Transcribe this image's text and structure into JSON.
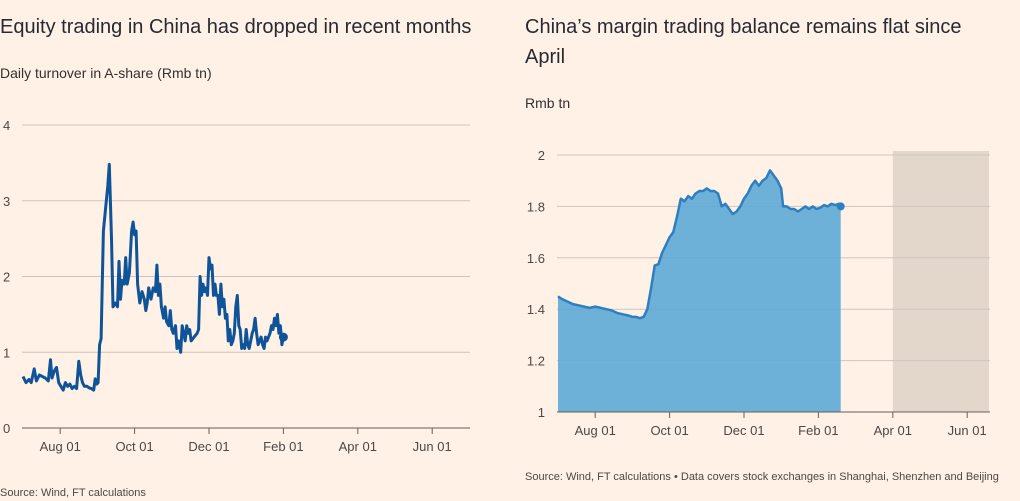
{
  "charts": {
    "left": {
      "title": "Equity trading in China has dropped in recent months",
      "subtitle": "Daily turnover in A-share (Rmb tn)",
      "source": "Source: Wind, FT calculations"
    },
    "right": {
      "title": "China’s margin trading balance remains flat since April",
      "subtitle": "Rmb tn",
      "source": "Source: Wind, FT calculations • Data covers stock exchanges in Shanghai, Shenzhen and Beijing"
    }
  },
  "colors": {
    "background": "#FFF1E5",
    "line": "#0F5499",
    "area_fill": "#5AA7D6",
    "area_stroke": "#2E7FBF",
    "shade": "#E3D7CC",
    "grid": "#CEC6BD"
  },
  "chart_data": [
    {
      "type": "line",
      "title": "Equity trading in China has dropped in recent months",
      "ylabel": "Daily turnover in A-share (Rmb tn)",
      "ylim": [
        0,
        4
      ],
      "yticks": [
        "0",
        "1",
        "2",
        "3",
        "4"
      ],
      "xticks": [
        "Aug 01",
        "Oct 01",
        "Dec 01",
        "Feb 01",
        "Apr 01",
        "Jun 01"
      ],
      "grid": true,
      "x_unit": "months since Jul 01",
      "series": [
        {
          "values": [
            [
              0.0,
              0.68
            ],
            [
              0.08,
              0.6
            ],
            [
              0.16,
              0.64
            ],
            [
              0.22,
              0.6
            ],
            [
              0.3,
              0.78
            ],
            [
              0.36,
              0.62
            ],
            [
              0.44,
              0.7
            ],
            [
              0.52,
              0.68
            ],
            [
              0.6,
              0.66
            ],
            [
              0.68,
              0.62
            ],
            [
              0.74,
              0.9
            ],
            [
              0.78,
              0.66
            ],
            [
              0.84,
              0.75
            ],
            [
              0.9,
              0.8
            ],
            [
              0.96,
              0.6
            ],
            [
              1.02,
              0.55
            ],
            [
              1.08,
              0.5
            ],
            [
              1.14,
              0.6
            ],
            [
              1.2,
              0.55
            ],
            [
              1.26,
              0.58
            ],
            [
              1.32,
              0.52
            ],
            [
              1.38,
              0.55
            ],
            [
              1.44,
              0.52
            ],
            [
              1.5,
              0.88
            ],
            [
              1.55,
              0.7
            ],
            [
              1.6,
              0.6
            ],
            [
              1.65,
              0.55
            ],
            [
              1.72,
              0.55
            ],
            [
              1.78,
              0.53
            ],
            [
              1.84,
              0.52
            ],
            [
              1.9,
              0.5
            ],
            [
              1.94,
              0.65
            ],
            [
              1.98,
              0.58
            ],
            [
              2.02,
              0.6
            ],
            [
              2.06,
              1.1
            ],
            [
              2.1,
              1.18
            ],
            [
              2.16,
              2.6
            ],
            [
              2.22,
              2.9
            ],
            [
              2.28,
              3.2
            ],
            [
              2.32,
              3.48
            ],
            [
              2.38,
              2.5
            ],
            [
              2.42,
              1.6
            ],
            [
              2.48,
              1.65
            ],
            [
              2.54,
              1.6
            ],
            [
              2.58,
              2.2
            ],
            [
              2.62,
              1.7
            ],
            [
              2.66,
              1.95
            ],
            [
              2.72,
              1.9
            ],
            [
              2.76,
              2.25
            ],
            [
              2.8,
              1.9
            ],
            [
              2.86,
              2.05
            ],
            [
              2.92,
              2.6
            ],
            [
              2.96,
              2.72
            ],
            [
              3.0,
              2.55
            ],
            [
              3.04,
              2.6
            ],
            [
              3.08,
              1.9
            ],
            [
              3.14,
              1.65
            ],
            [
              3.2,
              1.8
            ],
            [
              3.26,
              1.7
            ],
            [
              3.3,
              1.55
            ],
            [
              3.34,
              1.65
            ],
            [
              3.38,
              1.85
            ],
            [
              3.44,
              1.7
            ],
            [
              3.5,
              1.85
            ],
            [
              3.56,
              1.8
            ],
            [
              3.6,
              2.15
            ],
            [
              3.64,
              1.75
            ],
            [
              3.68,
              1.9
            ],
            [
              3.72,
              1.6
            ],
            [
              3.78,
              1.45
            ],
            [
              3.82,
              1.6
            ],
            [
              3.86,
              1.4
            ],
            [
              3.92,
              1.35
            ],
            [
              3.96,
              1.55
            ],
            [
              4.0,
              1.3
            ],
            [
              4.04,
              1.25
            ],
            [
              4.1,
              1.35
            ],
            [
              4.14,
              1.05
            ],
            [
              4.18,
              1.15
            ],
            [
              4.24,
              1.0
            ],
            [
              4.28,
              1.35
            ],
            [
              4.32,
              1.25
            ],
            [
              4.36,
              1.15
            ],
            [
              4.4,
              1.35
            ],
            [
              4.44,
              1.25
            ],
            [
              4.48,
              1.3
            ],
            [
              4.52,
              1.15
            ],
            [
              4.6,
              1.2
            ],
            [
              4.68,
              1.25
            ],
            [
              4.72,
              1.3
            ],
            [
              4.76,
              2.0
            ],
            [
              4.8,
              1.75
            ],
            [
              4.84,
              1.9
            ],
            [
              4.88,
              1.8
            ],
            [
              4.92,
              1.85
            ],
            [
              4.96,
              1.75
            ],
            [
              5.0,
              2.25
            ],
            [
              5.04,
              2.1
            ],
            [
              5.08,
              2.15
            ],
            [
              5.12,
              1.75
            ],
            [
              5.16,
              1.9
            ],
            [
              5.2,
              1.75
            ],
            [
              5.24,
              1.75
            ],
            [
              5.28,
              1.5
            ],
            [
              5.32,
              1.9
            ],
            [
              5.36,
              1.6
            ],
            [
              5.4,
              1.7
            ],
            [
              5.44,
              1.45
            ],
            [
              5.48,
              1.5
            ],
            [
              5.52,
              1.15
            ],
            [
              5.56,
              1.3
            ],
            [
              5.6,
              1.1
            ],
            [
              5.64,
              1.15
            ],
            [
              5.68,
              1.25
            ],
            [
              5.72,
              1.6
            ],
            [
              5.76,
              1.75
            ],
            [
              5.8,
              1.35
            ],
            [
              5.84,
              1.3
            ],
            [
              5.88,
              1.05
            ],
            [
              5.92,
              1.1
            ],
            [
              5.96,
              1.05
            ],
            [
              6.0,
              1.3
            ],
            [
              6.04,
              1.1
            ],
            [
              6.08,
              1.05
            ],
            [
              6.12,
              1.15
            ],
            [
              6.16,
              1.25
            ],
            [
              6.2,
              1.3
            ],
            [
              6.24,
              1.45
            ],
            [
              6.28,
              1.25
            ],
            [
              6.32,
              1.1
            ],
            [
              6.36,
              1.15
            ],
            [
              6.4,
              1.2
            ],
            [
              6.44,
              1.1
            ],
            [
              6.48,
              1.05
            ],
            [
              6.52,
              1.2
            ],
            [
              6.56,
              1.15
            ],
            [
              6.6,
              1.2
            ],
            [
              6.64,
              1.25
            ],
            [
              6.68,
              1.35
            ],
            [
              6.72,
              1.3
            ],
            [
              6.76,
              1.45
            ],
            [
              6.8,
              1.35
            ],
            [
              6.84,
              1.5
            ],
            [
              6.88,
              1.25
            ],
            [
              6.92,
              1.35
            ],
            [
              6.96,
              1.1
            ],
            [
              7.0,
              1.2
            ]
          ],
          "end_marker": true
        }
      ]
    },
    {
      "type": "area",
      "title": "China’s margin trading balance remains flat since April",
      "ylabel": "Rmb tn",
      "ylim": [
        1,
        2
      ],
      "yticks": [
        "1",
        "1.2",
        "1.4",
        "1.6",
        "1.8",
        "2"
      ],
      "xticks": [
        "Aug 01",
        "Oct 01",
        "Dec 01",
        "Feb 01",
        "Apr 01",
        "Jun 01"
      ],
      "grid": true,
      "x_unit": "months since Jul 01",
      "shaded_region": [
        "Apr 01",
        "end"
      ],
      "series": [
        {
          "values": [
            [
              0.0,
              1.45
            ],
            [
              0.1,
              1.44
            ],
            [
              0.25,
              1.43
            ],
            [
              0.4,
              1.42
            ],
            [
              0.55,
              1.415
            ],
            [
              0.7,
              1.41
            ],
            [
              0.85,
              1.405
            ],
            [
              1.0,
              1.41
            ],
            [
              1.15,
              1.405
            ],
            [
              1.3,
              1.4
            ],
            [
              1.45,
              1.395
            ],
            [
              1.6,
              1.385
            ],
            [
              1.75,
              1.38
            ],
            [
              1.9,
              1.375
            ],
            [
              2.0,
              1.37
            ],
            [
              2.1,
              1.37
            ],
            [
              2.2,
              1.365
            ],
            [
              2.3,
              1.37
            ],
            [
              2.4,
              1.4
            ],
            [
              2.5,
              1.48
            ],
            [
              2.6,
              1.57
            ],
            [
              2.7,
              1.575
            ],
            [
              2.8,
              1.62
            ],
            [
              2.9,
              1.65
            ],
            [
              3.0,
              1.68
            ],
            [
              3.1,
              1.7
            ],
            [
              3.2,
              1.76
            ],
            [
              3.3,
              1.83
            ],
            [
              3.4,
              1.82
            ],
            [
              3.5,
              1.84
            ],
            [
              3.6,
              1.83
            ],
            [
              3.7,
              1.85
            ],
            [
              3.8,
              1.86
            ],
            [
              3.9,
              1.86
            ],
            [
              4.0,
              1.87
            ],
            [
              4.1,
              1.86
            ],
            [
              4.2,
              1.86
            ],
            [
              4.3,
              1.85
            ],
            [
              4.4,
              1.8
            ],
            [
              4.5,
              1.81
            ],
            [
              4.6,
              1.79
            ],
            [
              4.7,
              1.77
            ],
            [
              4.8,
              1.78
            ],
            [
              4.9,
              1.8
            ],
            [
              5.0,
              1.83
            ],
            [
              5.1,
              1.85
            ],
            [
              5.2,
              1.88
            ],
            [
              5.3,
              1.9
            ],
            [
              5.4,
              1.88
            ],
            [
              5.5,
              1.9
            ],
            [
              5.6,
              1.91
            ],
            [
              5.7,
              1.94
            ],
            [
              5.8,
              1.92
            ],
            [
              5.9,
              1.9
            ],
            [
              6.0,
              1.87
            ],
            [
              6.05,
              1.8
            ],
            [
              6.15,
              1.8
            ],
            [
              6.25,
              1.79
            ],
            [
              6.35,
              1.79
            ],
            [
              6.45,
              1.78
            ],
            [
              6.55,
              1.79
            ],
            [
              6.65,
              1.8
            ],
            [
              6.75,
              1.79
            ],
            [
              6.85,
              1.8
            ],
            [
              6.95,
              1.79
            ],
            [
              7.05,
              1.795
            ],
            [
              7.15,
              1.805
            ],
            [
              7.25,
              1.8
            ],
            [
              7.35,
              1.81
            ],
            [
              7.45,
              1.805
            ],
            [
              7.55,
              1.81
            ],
            [
              7.6,
              1.8
            ]
          ],
          "end_marker": true
        }
      ]
    }
  ]
}
